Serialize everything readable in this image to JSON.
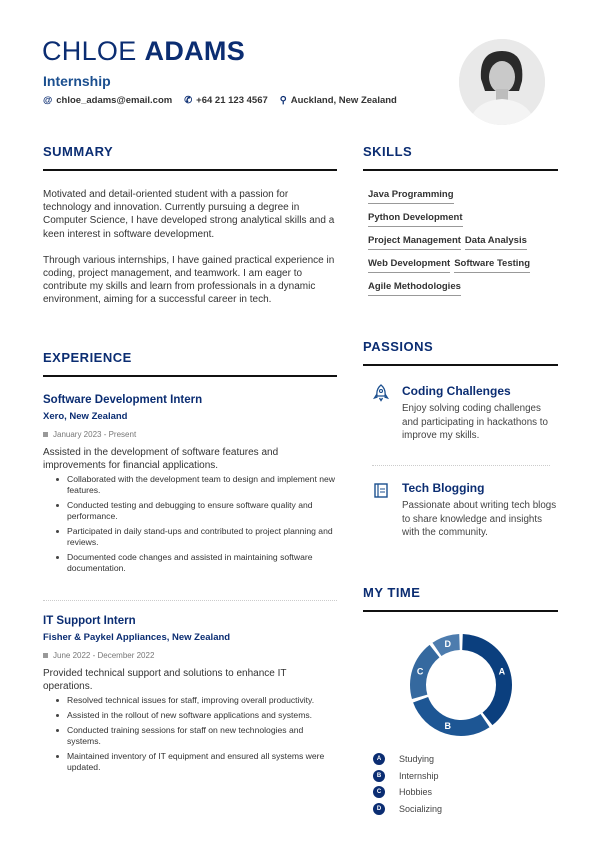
{
  "header": {
    "first_name": "CHLOE",
    "last_name": "ADAMS",
    "role": "Internship",
    "email": "chloe_adams@email.com",
    "phone": "+64 21 123 4567",
    "location": "Auckland, New Zealand"
  },
  "summary": {
    "heading": "SUMMARY",
    "paragraphs": [
      "Motivated and detail-oriented student with a passion for technology and innovation. Currently pursuing a degree in Computer Science, I have developed strong analytical skills and a keen interest in software development.",
      "Through various internships, I have gained practical experience in coding, project management, and teamwork. I am eager to contribute my skills and learn from professionals in a dynamic environment, aiming for a successful career in tech."
    ]
  },
  "experience": {
    "heading": "EXPERIENCE",
    "jobs": [
      {
        "title": "Software Development Intern",
        "company": "Xero, New Zealand",
        "date": "January 2023 - Present",
        "description": "Assisted in the development of software features and improvements for financial applications.",
        "bullets": [
          "Collaborated with the development team to design and implement new features.",
          "Conducted testing and debugging to ensure software quality and performance.",
          "Participated in daily stand-ups and contributed to project planning and reviews.",
          "Documented code changes and assisted in maintaining software documentation."
        ]
      },
      {
        "title": "IT Support Intern",
        "company": "Fisher & Paykel Appliances, New Zealand",
        "date": "June 2022 - December 2022",
        "description": "Provided technical support and solutions to enhance IT operations.",
        "bullets": [
          "Resolved technical issues for staff, improving overall productivity.",
          "Assisted in the rollout of new software applications and systems.",
          "Conducted training sessions for staff on new technologies and systems.",
          "Maintained inventory of IT equipment and ensured all systems were updated."
        ]
      }
    ]
  },
  "skills": {
    "heading": "SKILLS",
    "items": [
      "Java Programming",
      "Python Development",
      "Project Management",
      "Data Analysis",
      "Web Development",
      "Software Testing",
      "Agile Methodologies"
    ]
  },
  "passions": {
    "heading": "PASSIONS",
    "items": [
      {
        "icon": "rocket-icon",
        "title": "Coding Challenges",
        "description": "Enjoy solving coding challenges and participating in hackathons to improve my skills."
      },
      {
        "icon": "notebook-icon",
        "title": "Tech Blogging",
        "description": "Passionate about writing tech blogs to share knowledge and insights with the community."
      }
    ]
  },
  "my_time": {
    "heading": "MY TIME",
    "chart_data": {
      "type": "pie",
      "variant": "donut",
      "categories": [
        "Studying",
        "Internship",
        "Hobbies",
        "Socializing"
      ],
      "labels": [
        "A",
        "B",
        "C",
        "D"
      ],
      "values": [
        40,
        30,
        20,
        10
      ],
      "colors": [
        "#0b3f7e",
        "#1d5694",
        "#35699f",
        "#4d7cae"
      ]
    }
  },
  "colors": {
    "accent": "#0b2d72"
  }
}
